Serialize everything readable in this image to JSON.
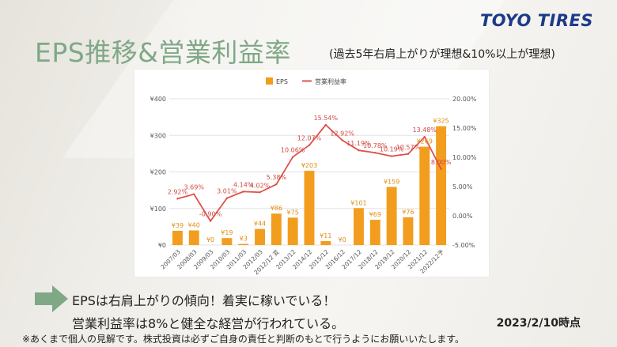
{
  "brand": {
    "logo_text": "TOYO TIRES"
  },
  "header": {
    "title": "EPS推移&営業利益率",
    "subtitle": "(過去5年右肩上がりが理想&10%以上が理想)"
  },
  "notes": {
    "line1": "EPSは右肩上がりの傾向！着実に稼いでいる！",
    "line2": "営業利益率は8%と健全な経営が行われている。",
    "date": "2023/2/10時点",
    "disclaimer": "※あくまで個人の見解です。株式投資は必ずご自身の責任と判断のもとで行うようにお願いいたします。"
  },
  "chart_data": {
    "type": "bar",
    "categories": [
      "2007/03",
      "2008/03",
      "2009/03",
      "2010/03",
      "2011/03",
      "2012/03",
      "2012/12 変",
      "2013/12",
      "2014/12",
      "2015/12",
      "2016/12",
      "2017/12",
      "2018/12",
      "2019/12",
      "2020/12",
      "2021/12",
      "2022/12予"
    ],
    "series": [
      {
        "name": "EPS",
        "type": "bar",
        "color": "#f29d1e",
        "values": [
          39,
          40,
          0,
          19,
          3,
          44,
          86,
          75,
          203,
          11,
          0,
          101,
          69,
          159,
          76,
          269,
          325
        ],
        "labels": [
          "¥39",
          "¥40",
          "¥0",
          "¥19",
          "¥3",
          "¥44",
          "¥86",
          "¥75",
          "¥203",
          "¥11",
          "¥0",
          "¥101",
          "¥69",
          "¥159",
          "¥76",
          "¥269",
          "¥325"
        ]
      },
      {
        "name": "営業利益率",
        "type": "line",
        "color": "#e0504a",
        "values": [
          2.92,
          3.69,
          -0.9,
          3.01,
          4.14,
          4.02,
          5.38,
          10.06,
          12.07,
          15.54,
          12.92,
          11.19,
          10.78,
          10.19,
          10.57,
          13.48,
          8.0
        ],
        "labels": [
          "2.92%",
          "3.69%",
          "-0.90%",
          "3.01%",
          "4.14%",
          "4.02%",
          "5.38%",
          "10.06%",
          "12.07%",
          "15.54%",
          "12.92%",
          "11.19%",
          "10.78%",
          "10.19%",
          "10.57%",
          "13.48%",
          "8.00%"
        ]
      }
    ],
    "y_left": {
      "min": 0,
      "max": 400,
      "ticks": [
        "¥0",
        "¥100",
        "¥200",
        "¥300",
        "¥400"
      ]
    },
    "y_right": {
      "min": -5,
      "max": 20,
      "ticks": [
        "-5.00%",
        "0.00%",
        "5.00%",
        "10.00%",
        "15.00%",
        "20.00%"
      ]
    },
    "legend_position": "top-center",
    "grid": true
  }
}
